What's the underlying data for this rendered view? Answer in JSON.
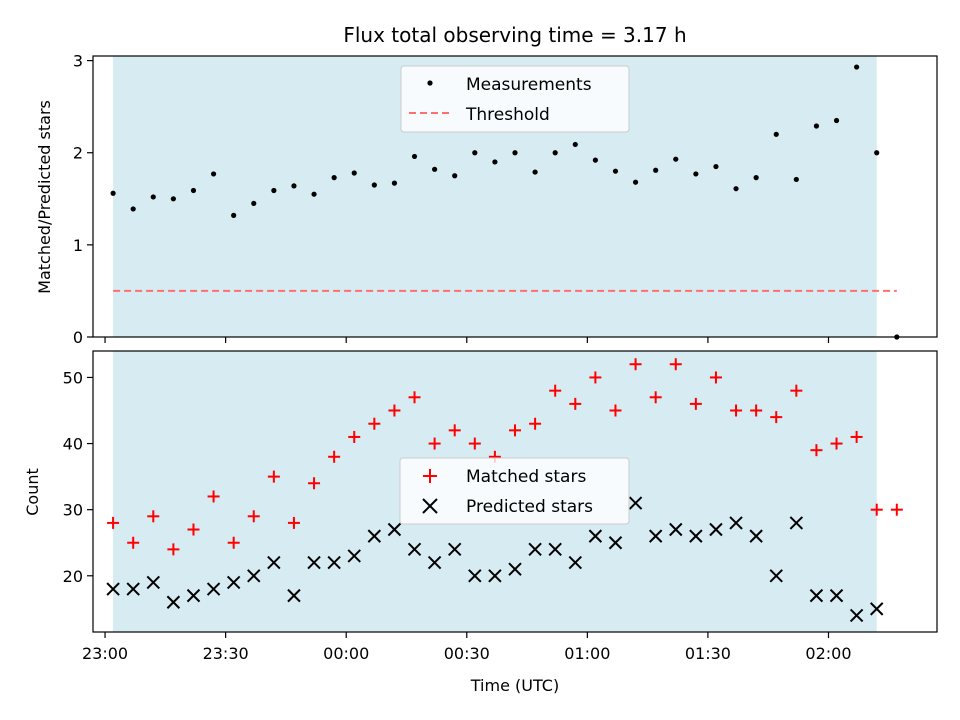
{
  "colors": {
    "observing_span": "#add8e6",
    "threshold": "#ff6f6f",
    "matched": "#ff0000",
    "predicted": "#000000",
    "measurement": "#000000"
  },
  "chart_data": [
    {
      "type": "scatter",
      "title": "Flux total observing time = 3.17 h",
      "xlabel": "",
      "ylabel": "Matched/Predicted stars",
      "ylim": [
        0,
        3.05
      ],
      "yticks": [
        "0",
        "1",
        "2",
        "3"
      ],
      "legend": [
        "Measurements",
        "Threshold"
      ],
      "legend_position": "top-center",
      "observing_span": [
        "23:02",
        "02:12"
      ],
      "threshold": {
        "name": "Threshold",
        "value": 0.5,
        "from": "23:02",
        "to": "02:17"
      },
      "series": [
        {
          "name": "Measurements",
          "points": [
            [
              "23:02",
              1.56
            ],
            [
              "23:07",
              1.39
            ],
            [
              "23:12",
              1.52
            ],
            [
              "23:17",
              1.5
            ],
            [
              "23:22",
              1.59
            ],
            [
              "23:27",
              1.77
            ],
            [
              "23:32",
              1.32
            ],
            [
              "23:37",
              1.45
            ],
            [
              "23:42",
              1.59
            ],
            [
              "23:47",
              1.64
            ],
            [
              "23:52",
              1.55
            ],
            [
              "23:57",
              1.73
            ],
            [
              "00:02",
              1.78
            ],
            [
              "00:07",
              1.65
            ],
            [
              "00:12",
              1.67
            ],
            [
              "00:17",
              1.96
            ],
            [
              "00:22",
              1.82
            ],
            [
              "00:27",
              1.75
            ],
            [
              "00:32",
              2.0
            ],
            [
              "00:37",
              1.9
            ],
            [
              "00:42",
              2.0
            ],
            [
              "00:47",
              1.79
            ],
            [
              "00:52",
              2.0
            ],
            [
              "00:57",
              2.09
            ],
            [
              "01:02",
              1.92
            ],
            [
              "01:07",
              1.8
            ],
            [
              "01:12",
              1.68
            ],
            [
              "01:17",
              1.81
            ],
            [
              "01:22",
              1.93
            ],
            [
              "01:27",
              1.77
            ],
            [
              "01:32",
              1.85
            ],
            [
              "01:37",
              1.61
            ],
            [
              "01:42",
              1.73
            ],
            [
              "01:47",
              2.2
            ],
            [
              "01:52",
              1.71
            ],
            [
              "01:57",
              2.29
            ],
            [
              "02:02",
              2.35
            ],
            [
              "02:07",
              2.93
            ],
            [
              "02:12",
              2.0
            ],
            [
              "02:17",
              0.0
            ]
          ]
        }
      ]
    },
    {
      "type": "scatter",
      "xlabel": "Time (UTC)",
      "ylabel": "Count",
      "ylim": [
        11.5,
        54
      ],
      "yticks": [
        "20",
        "30",
        "40",
        "50"
      ],
      "xticks": [
        "23:00",
        "23:30",
        "00:00",
        "00:30",
        "01:00",
        "01:30",
        "02:00"
      ],
      "xlim": [
        "22:57",
        "02:27"
      ],
      "legend": [
        "Matched stars",
        "Predicted stars"
      ],
      "legend_position": "center",
      "observing_span": [
        "23:02",
        "02:12"
      ],
      "series": [
        {
          "name": "Matched stars",
          "points": [
            [
              "23:02",
              28
            ],
            [
              "23:07",
              25
            ],
            [
              "23:12",
              29
            ],
            [
              "23:17",
              24
            ],
            [
              "23:22",
              27
            ],
            [
              "23:27",
              32
            ],
            [
              "23:32",
              25
            ],
            [
              "23:37",
              29
            ],
            [
              "23:42",
              35
            ],
            [
              "23:47",
              28
            ],
            [
              "23:52",
              34
            ],
            [
              "23:57",
              38
            ],
            [
              "00:02",
              41
            ],
            [
              "00:07",
              43
            ],
            [
              "00:12",
              45
            ],
            [
              "00:17",
              47
            ],
            [
              "00:22",
              40
            ],
            [
              "00:27",
              42
            ],
            [
              "00:32",
              40
            ],
            [
              "00:37",
              38
            ],
            [
              "00:42",
              42
            ],
            [
              "00:47",
              43
            ],
            [
              "00:52",
              48
            ],
            [
              "00:57",
              46
            ],
            [
              "01:02",
              50
            ],
            [
              "01:07",
              45
            ],
            [
              "01:12",
              52
            ],
            [
              "01:17",
              47
            ],
            [
              "01:22",
              52
            ],
            [
              "01:27",
              46
            ],
            [
              "01:32",
              50
            ],
            [
              "01:37",
              45
            ],
            [
              "01:42",
              45
            ],
            [
              "01:47",
              44
            ],
            [
              "01:52",
              48
            ],
            [
              "01:57",
              39
            ],
            [
              "02:02",
              40
            ],
            [
              "02:07",
              41
            ],
            [
              "02:12",
              30
            ],
            [
              "02:17",
              30
            ]
          ]
        },
        {
          "name": "Predicted stars",
          "points": [
            [
              "23:02",
              18
            ],
            [
              "23:07",
              18
            ],
            [
              "23:12",
              19
            ],
            [
              "23:17",
              16
            ],
            [
              "23:22",
              17
            ],
            [
              "23:27",
              18
            ],
            [
              "23:32",
              19
            ],
            [
              "23:37",
              20
            ],
            [
              "23:42",
              22
            ],
            [
              "23:47",
              17
            ],
            [
              "23:52",
              22
            ],
            [
              "23:57",
              22
            ],
            [
              "00:02",
              23
            ],
            [
              "00:07",
              26
            ],
            [
              "00:12",
              27
            ],
            [
              "00:17",
              24
            ],
            [
              "00:22",
              22
            ],
            [
              "00:27",
              24
            ],
            [
              "00:32",
              20
            ],
            [
              "00:37",
              20
            ],
            [
              "00:42",
              21
            ],
            [
              "00:47",
              24
            ],
            [
              "00:52",
              24
            ],
            [
              "00:57",
              22
            ],
            [
              "01:02",
              26
            ],
            [
              "01:07",
              25
            ],
            [
              "01:12",
              31
            ],
            [
              "01:17",
              26
            ],
            [
              "01:22",
              27
            ],
            [
              "01:27",
              26
            ],
            [
              "01:32",
              27
            ],
            [
              "01:37",
              28
            ],
            [
              "01:42",
              26
            ],
            [
              "01:47",
              20
            ],
            [
              "01:52",
              28
            ],
            [
              "01:57",
              17
            ],
            [
              "02:02",
              17
            ],
            [
              "02:07",
              14
            ],
            [
              "02:12",
              15
            ]
          ]
        }
      ]
    }
  ]
}
